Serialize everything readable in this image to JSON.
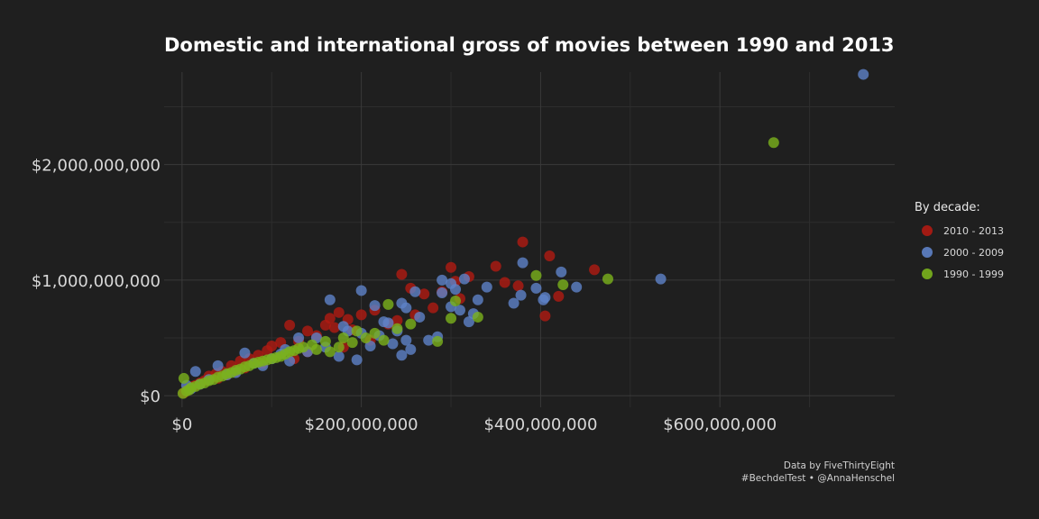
{
  "chart_data": {
    "type": "scatter",
    "title": "Domestic and international gross of movies between 1990 and 2013",
    "xlabel": "",
    "ylabel": "",
    "xlim": [
      -20000000,
      795000000
    ],
    "ylim": [
      -100000000,
      2800000000
    ],
    "x_ticks": [
      0,
      200000000,
      400000000,
      600000000
    ],
    "x_tick_labels": [
      "$0",
      "$200,000,000",
      "$400,000,000",
      "$600,000,000"
    ],
    "y_ticks": [
      0,
      1000000000,
      2000000000
    ],
    "y_tick_labels": [
      "$0",
      "$1,000,000,000",
      "$2,000,000,000"
    ],
    "grid": true,
    "legend": {
      "title": "By decade:",
      "placement": "right"
    },
    "series": [
      {
        "name": "2010 - 2013",
        "color": "#b01a12",
        "points": [
          [
            380000000,
            1330000000
          ],
          [
            410000000,
            1210000000
          ],
          [
            405000000,
            690000000
          ],
          [
            460000000,
            1090000000
          ],
          [
            420000000,
            860000000
          ],
          [
            350000000,
            1120000000
          ],
          [
            300000000,
            1110000000
          ],
          [
            320000000,
            1030000000
          ],
          [
            245000000,
            1050000000
          ],
          [
            255000000,
            930000000
          ],
          [
            290000000,
            900000000
          ],
          [
            270000000,
            880000000
          ],
          [
            305000000,
            990000000
          ],
          [
            310000000,
            840000000
          ],
          [
            280000000,
            760000000
          ],
          [
            260000000,
            700000000
          ],
          [
            240000000,
            650000000
          ],
          [
            230000000,
            620000000
          ],
          [
            215000000,
            740000000
          ],
          [
            200000000,
            700000000
          ],
          [
            175000000,
            720000000
          ],
          [
            165000000,
            670000000
          ],
          [
            185000000,
            660000000
          ],
          [
            190000000,
            570000000
          ],
          [
            170000000,
            590000000
          ],
          [
            160000000,
            610000000
          ],
          [
            140000000,
            560000000
          ],
          [
            120000000,
            610000000
          ],
          [
            150000000,
            520000000
          ],
          [
            130000000,
            470000000
          ],
          [
            110000000,
            460000000
          ],
          [
            100000000,
            430000000
          ],
          [
            95000000,
            390000000
          ],
          [
            85000000,
            350000000
          ],
          [
            75000000,
            320000000
          ],
          [
            65000000,
            300000000
          ],
          [
            55000000,
            260000000
          ],
          [
            45000000,
            210000000
          ],
          [
            38000000,
            190000000
          ],
          [
            30000000,
            170000000
          ],
          [
            25000000,
            130000000
          ],
          [
            20000000,
            110000000
          ],
          [
            15000000,
            90000000
          ],
          [
            10000000,
            70000000
          ],
          [
            5000000,
            45000000
          ],
          [
            2000000,
            25000000
          ],
          [
            8000000,
            55000000
          ],
          [
            12000000,
            80000000
          ],
          [
            180000000,
            420000000
          ],
          [
            210000000,
            480000000
          ],
          [
            140000000,
            380000000
          ],
          [
            90000000,
            280000000
          ],
          [
            70000000,
            240000000
          ],
          [
            60000000,
            210000000
          ],
          [
            50000000,
            180000000
          ],
          [
            40000000,
            150000000
          ],
          [
            125000000,
            320000000
          ],
          [
            375000000,
            950000000
          ],
          [
            360000000,
            980000000
          ]
        ]
      },
      {
        "name": "2000 - 2009",
        "color": "#5e82c8",
        "points": [
          [
            760000000,
            2780000000
          ],
          [
            534000000,
            1010000000
          ],
          [
            440000000,
            940000000
          ],
          [
            423000000,
            1070000000
          ],
          [
            380000000,
            1150000000
          ],
          [
            395000000,
            930000000
          ],
          [
            370000000,
            800000000
          ],
          [
            378000000,
            870000000
          ],
          [
            403000000,
            830000000
          ],
          [
            405000000,
            850000000
          ],
          [
            340000000,
            940000000
          ],
          [
            330000000,
            830000000
          ],
          [
            305000000,
            920000000
          ],
          [
            290000000,
            890000000
          ],
          [
            300000000,
            970000000
          ],
          [
            290000000,
            1000000000
          ],
          [
            315000000,
            1010000000
          ],
          [
            325000000,
            710000000
          ],
          [
            260000000,
            900000000
          ],
          [
            245000000,
            800000000
          ],
          [
            250000000,
            760000000
          ],
          [
            200000000,
            910000000
          ],
          [
            215000000,
            780000000
          ],
          [
            225000000,
            640000000
          ],
          [
            230000000,
            630000000
          ],
          [
            240000000,
            560000000
          ],
          [
            250000000,
            480000000
          ],
          [
            275000000,
            480000000
          ],
          [
            285000000,
            510000000
          ],
          [
            300000000,
            770000000
          ],
          [
            310000000,
            740000000
          ],
          [
            320000000,
            640000000
          ],
          [
            265000000,
            680000000
          ],
          [
            165000000,
            830000000
          ],
          [
            180000000,
            600000000
          ],
          [
            185000000,
            560000000
          ],
          [
            150000000,
            500000000
          ],
          [
            130000000,
            500000000
          ],
          [
            115000000,
            400000000
          ],
          [
            110000000,
            360000000
          ],
          [
            100000000,
            320000000
          ],
          [
            80000000,
            280000000
          ],
          [
            70000000,
            370000000
          ],
          [
            40000000,
            260000000
          ],
          [
            15000000,
            210000000
          ],
          [
            5000000,
            90000000
          ],
          [
            10000000,
            60000000
          ],
          [
            20000000,
            100000000
          ],
          [
            30000000,
            140000000
          ],
          [
            50000000,
            180000000
          ],
          [
            60000000,
            200000000
          ],
          [
            90000000,
            260000000
          ],
          [
            120000000,
            300000000
          ],
          [
            140000000,
            380000000
          ],
          [
            160000000,
            420000000
          ],
          [
            200000000,
            540000000
          ],
          [
            210000000,
            430000000
          ],
          [
            195000000,
            310000000
          ],
          [
            175000000,
            340000000
          ],
          [
            220000000,
            520000000
          ],
          [
            235000000,
            450000000
          ],
          [
            245000000,
            350000000
          ],
          [
            255000000,
            400000000
          ]
        ]
      },
      {
        "name": "1990 - 1999",
        "color": "#7ab21c",
        "points": [
          [
            660000000,
            2190000000
          ],
          [
            475000000,
            1010000000
          ],
          [
            425000000,
            960000000
          ],
          [
            395000000,
            1040000000
          ],
          [
            330000000,
            680000000
          ],
          [
            305000000,
            820000000
          ],
          [
            300000000,
            670000000
          ],
          [
            285000000,
            470000000
          ],
          [
            230000000,
            790000000
          ],
          [
            215000000,
            540000000
          ],
          [
            225000000,
            480000000
          ],
          [
            195000000,
            560000000
          ],
          [
            180000000,
            500000000
          ],
          [
            160000000,
            470000000
          ],
          [
            145000000,
            440000000
          ],
          [
            130000000,
            410000000
          ],
          [
            120000000,
            380000000
          ],
          [
            110000000,
            340000000
          ],
          [
            100000000,
            320000000
          ],
          [
            90000000,
            300000000
          ],
          [
            80000000,
            280000000
          ],
          [
            70000000,
            250000000
          ],
          [
            60000000,
            220000000
          ],
          [
            50000000,
            190000000
          ],
          [
            40000000,
            160000000
          ],
          [
            30000000,
            130000000
          ],
          [
            20000000,
            100000000
          ],
          [
            10000000,
            70000000
          ],
          [
            5000000,
            40000000
          ],
          [
            2000000,
            150000000
          ],
          [
            1000000,
            20000000
          ],
          [
            8000000,
            50000000
          ],
          [
            15000000,
            80000000
          ],
          [
            25000000,
            110000000
          ],
          [
            35000000,
            140000000
          ],
          [
            45000000,
            170000000
          ],
          [
            55000000,
            200000000
          ],
          [
            65000000,
            230000000
          ],
          [
            75000000,
            260000000
          ],
          [
            85000000,
            290000000
          ],
          [
            95000000,
            310000000
          ],
          [
            105000000,
            330000000
          ],
          [
            115000000,
            360000000
          ],
          [
            125000000,
            390000000
          ],
          [
            135000000,
            420000000
          ],
          [
            150000000,
            400000000
          ],
          [
            165000000,
            380000000
          ],
          [
            175000000,
            420000000
          ],
          [
            190000000,
            460000000
          ],
          [
            205000000,
            500000000
          ],
          [
            240000000,
            580000000
          ],
          [
            255000000,
            620000000
          ]
        ]
      }
    ],
    "caption_lines": [
      "Data by FiveThirtyEight",
      "#BechdelTest • @AnnaHenschel"
    ]
  }
}
